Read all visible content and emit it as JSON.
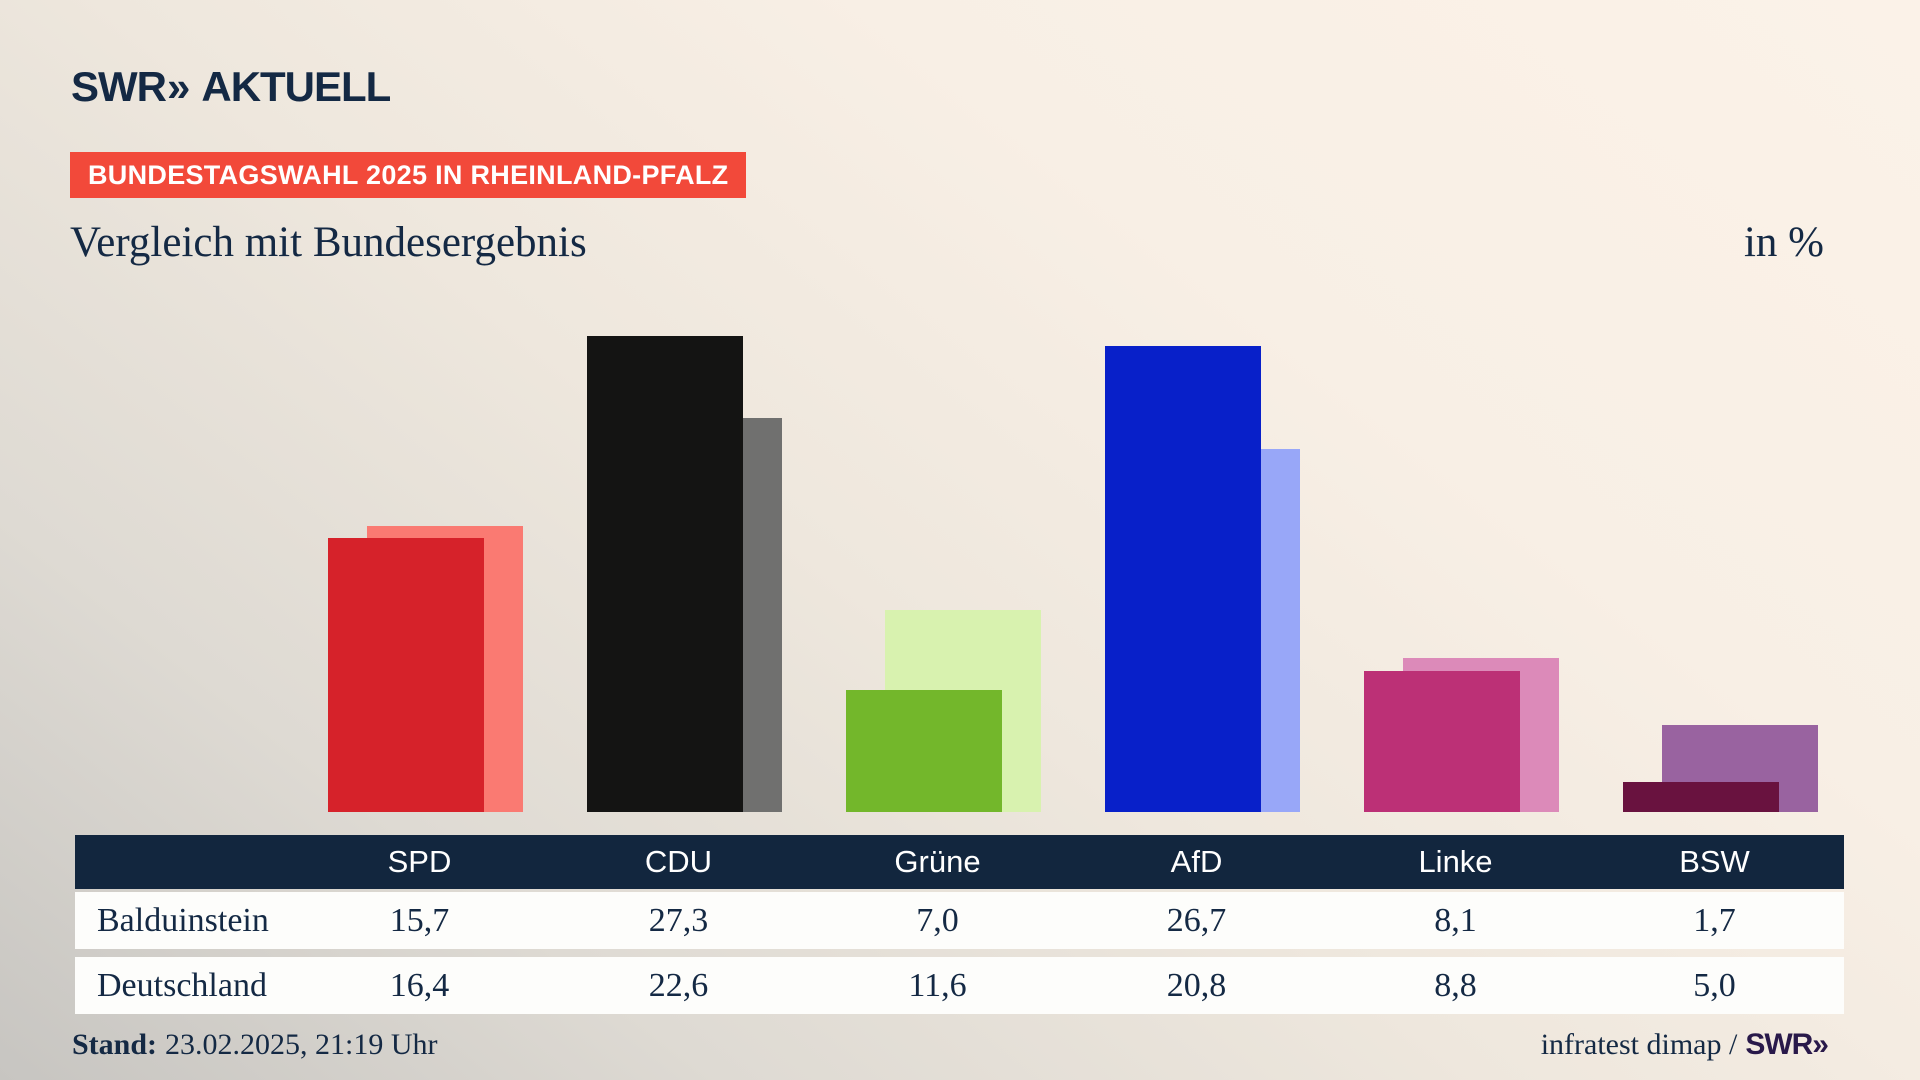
{
  "header": {
    "logo": {
      "brand": "SWR",
      "chevrons": "»",
      "suffix": "AKTUELL"
    },
    "badge": "BUNDESTAGSWAHL 2025 IN RHEINLAND-PFALZ",
    "title": "Vergleich mit Bundesergebnis",
    "unit_label": "in %"
  },
  "chart_data": {
    "type": "bar",
    "categories": [
      "SPD",
      "CDU",
      "Grüne",
      "AfD",
      "Linke",
      "BSW"
    ],
    "series": [
      {
        "name": "Balduinstein",
        "values": [
          15.7,
          27.3,
          7.0,
          26.7,
          8.1,
          1.7
        ],
        "colors": [
          "#d6222a",
          "#141413",
          "#73b72b",
          "#0820c9",
          "#bc3076",
          "#69123f"
        ]
      },
      {
        "name": "Deutschland",
        "values": [
          16.4,
          22.6,
          11.6,
          20.8,
          8.8,
          5.0
        ],
        "colors": [
          "#fa7a72",
          "#70706f",
          "#d8f2af",
          "#98a7f8",
          "#dc8ab9",
          "#9963a0"
        ]
      }
    ],
    "unit": "%",
    "title": "Vergleich mit Bundesergebnis",
    "xlabel": "",
    "ylabel": "in %",
    "ylim": [
      0,
      30
    ],
    "grid": false,
    "legend_position": "table-below",
    "layout_hint": "paired overlapping bars, first series in front, second series behind offset right"
  },
  "table": {
    "columns": [
      "SPD",
      "CDU",
      "Grüne",
      "AfD",
      "Linke",
      "BSW"
    ],
    "rows": [
      {
        "label": "Balduinstein",
        "values": [
          "15,7",
          "27,3",
          "7,0",
          "26,7",
          "8,1",
          "1,7"
        ]
      },
      {
        "label": "Deutschland",
        "values": [
          "16,4",
          "22,6",
          "11,6",
          "20,8",
          "8,8",
          "5,0"
        ]
      }
    ]
  },
  "footer": {
    "stand_label": "Stand:",
    "stand_value": "23.02.2025, 21:19 Uhr",
    "source": "infratest dimap /",
    "source_brand": "SWR»"
  },
  "colors": {
    "navy": "#142944",
    "table_header_bg": "#12263e",
    "badge_bg": "#f2493a",
    "row_bg": "#fdfdfb",
    "footer_brand": "#29194a",
    "background_top_right": "#fbf2e8",
    "background_bottom_left": "#c7c5c1"
  }
}
